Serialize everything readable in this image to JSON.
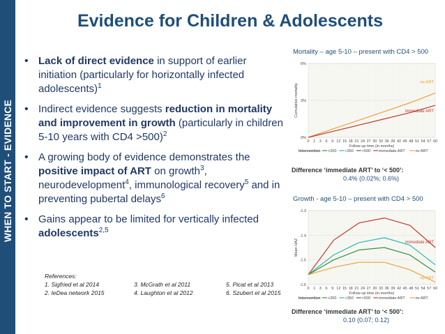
{
  "sidebar": {
    "label": "WHEN TO START - EVIDENCE"
  },
  "title": "Evidence for Children & Adolescents",
  "bullets": [
    {
      "parts": [
        {
          "b": "Lack of direct evidence"
        },
        {
          "t": " in support of earlier initiation (particularly for horizontally infected adolescents)"
        },
        {
          "sup": "1"
        }
      ]
    },
    {
      "parts": [
        {
          "t": "Indirect evidence suggests "
        },
        {
          "b": "reduction in mortality and improvement in growth"
        },
        {
          "t": " (particularly in children 5-10 years with CD4 >500)"
        },
        {
          "sup": "2"
        }
      ]
    },
    {
      "parts": [
        {
          "t": "A growing body of evidence demonstrates the "
        },
        {
          "b": "positive impact of ART"
        },
        {
          "t": " on growth"
        },
        {
          "sup": "3"
        },
        {
          "t": ", neurodevelopment"
        },
        {
          "sup": "4"
        },
        {
          "t": ", immunological recovery"
        },
        {
          "sup": "5"
        },
        {
          "t": " and in preventing pubertal delays"
        },
        {
          "sup": "6"
        }
      ]
    },
    {
      "parts": [
        {
          "t": "Gains appear to be limited for vertically infected "
        },
        {
          "b": "adolescents"
        },
        {
          "sup": "2,5"
        }
      ]
    }
  ],
  "references": {
    "heading": "References:",
    "items": [
      "1. Sigfried et al 2014",
      "3. McGrath et al 2011",
      "5. Picat et al 2013",
      "2. IeDea network 2015",
      "4. Laughton et al 2012",
      "6. Szubert et al 2015"
    ]
  },
  "colors": {
    "navy": "#1f4e79",
    "orange": "#e8a33a",
    "red": "#c0392b",
    "green": "#3a8f3a",
    "teal": "#2bb7b0"
  },
  "chart_data": [
    {
      "type": "line",
      "title": "Mortality – age 5-10 – present with CD4 > 500",
      "ylabel": "Cumulative mortality",
      "xlabel": "Follow-up time (in months)",
      "x": [
        0,
        12,
        24,
        36,
        48,
        60
      ],
      "x_ticks": [
        "0",
        "1",
        "3",
        "6",
        "9",
        "12",
        "15",
        "18",
        "21",
        "24",
        "27",
        "30",
        "33",
        "36",
        "39",
        "42",
        "45",
        "48",
        "51",
        "54",
        "57",
        "60"
      ],
      "y_ticks": [
        "0%",
        "3%",
        "6%"
      ],
      "ylim": [
        0,
        6
      ],
      "series": [
        {
          "name": "no ART",
          "color": "#e8a33a",
          "values": [
            0,
            0.7,
            1.4,
            2.1,
            2.8,
            3.6
          ]
        },
        {
          "name": "immediate ART",
          "color": "#c0392b",
          "values": [
            0,
            0.5,
            1.0,
            1.5,
            2.0,
            2.6
          ]
        }
      ],
      "legend_label": "Intervention",
      "legend_entries": [
        "<200",
        "<350",
        "<500",
        "immediate ART",
        "no ART"
      ],
      "difference_label": "Difference ‘immediate ART’ to ‘< 500’:",
      "difference_value": "0.4% (0.02%; 0.6%)"
    },
    {
      "type": "line",
      "title": "Growth - age 5-10 – present with CD4 > 500",
      "ylabel": "Mean HAZ",
      "xlabel": "Follow-up time (in months)",
      "x": [
        0,
        12,
        24,
        36,
        48,
        60
      ],
      "x_ticks": [
        "0",
        "1",
        "3",
        "6",
        "9",
        "12",
        "15",
        "18",
        "21",
        "24",
        "27",
        "30",
        "33",
        "36",
        "39",
        "42",
        "45",
        "48",
        "51",
        "54",
        "57",
        "60"
      ],
      "y_ticks": [
        "-1.3",
        "-1.4",
        "-1.5",
        "-1.6"
      ],
      "ylim": [
        -1.6,
        -1.3
      ],
      "series": [
        {
          "name": "immediate ART",
          "color": "#c0392b",
          "values": [
            -1.56,
            -1.42,
            -1.35,
            -1.33,
            -1.36,
            -1.45
          ]
        },
        {
          "name": "",
          "color": "#2bb7b0",
          "values": [
            -1.56,
            -1.48,
            -1.43,
            -1.41,
            -1.44,
            -1.52
          ]
        },
        {
          "name": "",
          "color": "#3a8f3a",
          "values": [
            -1.56,
            -1.5,
            -1.46,
            -1.45,
            -1.48,
            -1.55
          ]
        },
        {
          "name": "no ART",
          "color": "#e8a33a",
          "values": [
            -1.56,
            -1.53,
            -1.51,
            -1.51,
            -1.54,
            -1.59
          ]
        }
      ],
      "legend_label": "Intervention",
      "legend_entries": [
        "<200",
        "<350",
        "<500",
        "immediate ART",
        "no ART"
      ],
      "difference_label": "Difference ‘immediate ART’ to ‘< 500’:",
      "difference_value": "0.10 (0.07; 0.12)"
    }
  ]
}
